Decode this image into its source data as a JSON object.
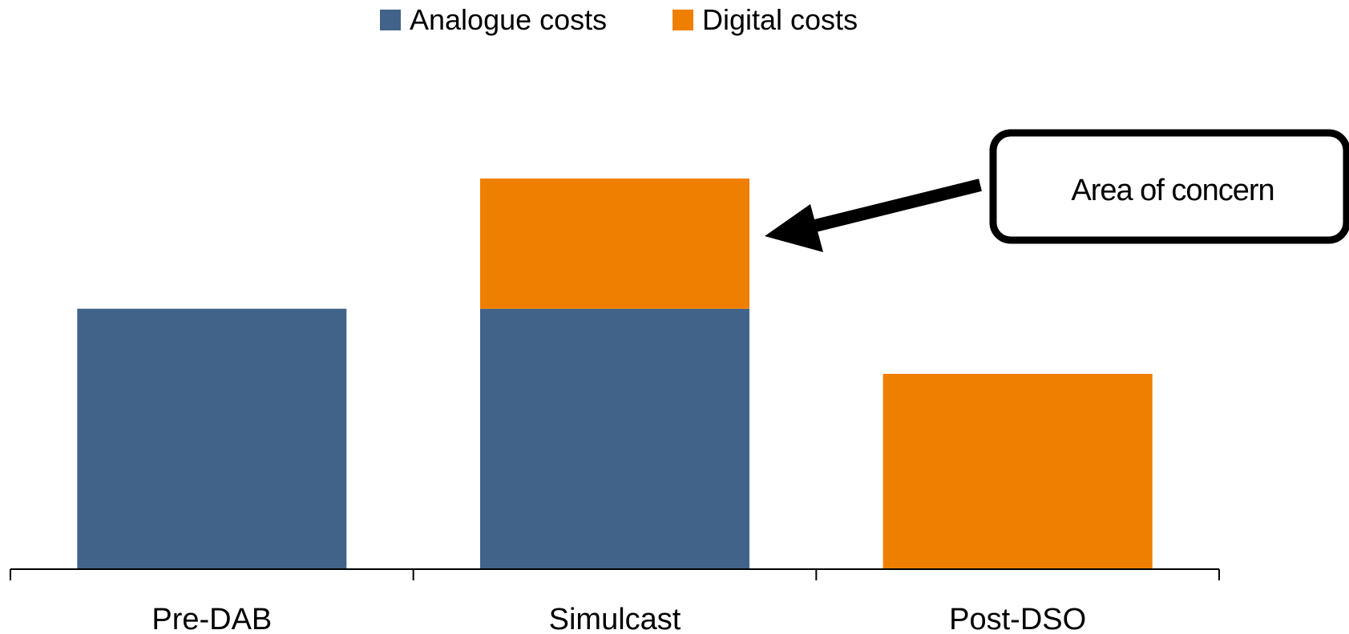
{
  "chart_data": {
    "type": "bar",
    "stacked": true,
    "categories": [
      "Pre-DAB",
      "Simulcast",
      "Post-DSO"
    ],
    "series": [
      {
        "name": "Analogue costs",
        "color": "#416389",
        "values": [
          100,
          100,
          0
        ]
      },
      {
        "name": "Digital costs",
        "color": "#ef7f00",
        "values": [
          0,
          50,
          75
        ]
      }
    ],
    "ylim": [
      0,
      150
    ],
    "xlabel": "",
    "ylabel": "",
    "grid": false,
    "legend": "top-center",
    "annotation": {
      "text": "Area of concern",
      "target": "Simulcast"
    }
  }
}
